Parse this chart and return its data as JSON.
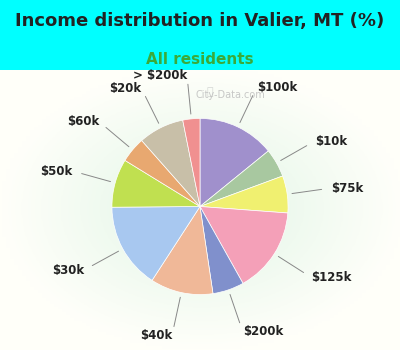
{
  "title": "Income distribution in Valier, MT (%)",
  "subtitle": "All residents",
  "bg_cyan": "#00FFFF",
  "bg_inner": "#d8f0e8",
  "watermark": "City-Data.com",
  "slices": [
    {
      "label": "$100k",
      "value": 13.5,
      "color": "#a090cc"
    },
    {
      "label": "$10k",
      "value": 5.0,
      "color": "#a8c8a0"
    },
    {
      "label": "$75k",
      "value": 6.5,
      "color": "#f0f070"
    },
    {
      "label": "$125k",
      "value": 15.0,
      "color": "#f4a0b8"
    },
    {
      "label": "$200k",
      "value": 5.5,
      "color": "#8090cc"
    },
    {
      "label": "$40k",
      "value": 11.0,
      "color": "#f0b898"
    },
    {
      "label": "$30k",
      "value": 15.0,
      "color": "#a8c8f0"
    },
    {
      "label": "$50k",
      "value": 8.5,
      "color": "#c0e050"
    },
    {
      "label": "$60k",
      "value": 4.5,
      "color": "#e8a870"
    },
    {
      "label": "$20k",
      "value": 8.0,
      "color": "#c8bfa8"
    },
    {
      "label": "> $200k",
      "value": 3.0,
      "color": "#f09090"
    }
  ],
  "title_fontsize": 13,
  "subtitle_fontsize": 11,
  "label_fontsize": 8.5
}
